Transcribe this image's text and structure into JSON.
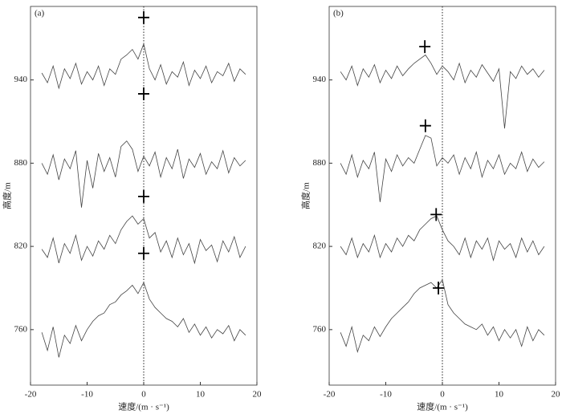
{
  "chart_data": [
    {
      "type": "line",
      "panel_label": "(a)",
      "xlabel": "速度/(m · s⁻¹)",
      "ylabel": "高度/m",
      "xlim": [
        -20,
        20
      ],
      "ylim": [
        720,
        993
      ],
      "xticks": [
        -20,
        -10,
        0,
        10,
        20
      ],
      "yticks": [
        760,
        820,
        880,
        940
      ],
      "reference_x": 0,
      "color": "#444444",
      "x": [
        -18,
        -17,
        -16,
        -15,
        -14,
        -13,
        -12,
        -11,
        -10,
        -9,
        -8,
        -7,
        -6,
        -5,
        -4,
        -3,
        -2,
        -1,
        0,
        1,
        2,
        3,
        4,
        5,
        6,
        7,
        8,
        9,
        10,
        11,
        12,
        13,
        14,
        15,
        16,
        17,
        18
      ],
      "series": [
        {
          "values": [
            945,
            938,
            950,
            934,
            948,
            941,
            952,
            937,
            946,
            940,
            950,
            936,
            948,
            944,
            955,
            958,
            962,
            955,
            966,
            948,
            940,
            951,
            937,
            946,
            942,
            953,
            936,
            947,
            941,
            950,
            938,
            946,
            943,
            952,
            939,
            948,
            944
          ]
        },
        {
          "values": [
            880,
            872,
            886,
            868,
            883,
            876,
            889,
            848,
            882,
            862,
            887,
            874,
            884,
            870,
            892,
            896,
            890,
            874,
            885,
            878,
            888,
            870,
            884,
            876,
            890,
            869,
            883,
            877,
            887,
            872,
            881,
            876,
            889,
            873,
            884,
            878,
            882
          ]
        },
        {
          "values": [
            818,
            812,
            826,
            808,
            822,
            815,
            828,
            810,
            820,
            813,
            824,
            818,
            828,
            822,
            832,
            838,
            842,
            836,
            840,
            826,
            830,
            816,
            824,
            812,
            826,
            814,
            822,
            808,
            825,
            817,
            821,
            809,
            824,
            816,
            827,
            812,
            820
          ]
        },
        {
          "values": [
            758,
            745,
            762,
            740,
            756,
            750,
            763,
            752,
            760,
            766,
            770,
            772,
            778,
            780,
            785,
            788,
            792,
            786,
            794,
            782,
            776,
            772,
            768,
            766,
            762,
            768,
            758,
            764,
            756,
            762,
            754,
            760,
            757,
            763,
            752,
            760,
            756
          ]
        }
      ],
      "markers": {
        "x": [
          0,
          0,
          0,
          0
        ],
        "y": [
          985,
          930,
          856,
          815
        ]
      }
    },
    {
      "type": "line",
      "panel_label": "(b)",
      "xlabel": "速度/(m · s⁻¹)",
      "ylabel": "高度/m",
      "xlim": [
        -20,
        20
      ],
      "ylim": [
        720,
        993
      ],
      "xticks": [
        -20,
        -10,
        0,
        10,
        20
      ],
      "yticks": [
        760,
        820,
        880,
        940
      ],
      "reference_x": 0,
      "color": "#444444",
      "x": [
        -18,
        -17,
        -16,
        -15,
        -14,
        -13,
        -12,
        -11,
        -10,
        -9,
        -8,
        -7,
        -6,
        -5,
        -4,
        -3,
        -2,
        -1,
        0,
        1,
        2,
        3,
        4,
        5,
        6,
        7,
        8,
        9,
        10,
        11,
        12,
        13,
        14,
        15,
        16,
        17,
        18
      ],
      "series": [
        {
          "values": [
            946,
            940,
            950,
            936,
            948,
            942,
            951,
            938,
            947,
            941,
            950,
            943,
            948,
            952,
            955,
            958,
            952,
            944,
            950,
            946,
            940,
            952,
            938,
            947,
            942,
            951,
            945,
            939,
            948,
            905,
            946,
            941,
            950,
            944,
            948,
            942,
            947
          ]
        },
        {
          "values": [
            880,
            872,
            886,
            870,
            882,
            876,
            888,
            852,
            883,
            874,
            886,
            878,
            884,
            880,
            890,
            900,
            898,
            878,
            884,
            880,
            886,
            872,
            884,
            876,
            888,
            870,
            882,
            876,
            886,
            872,
            880,
            876,
            888,
            874,
            883,
            877,
            881
          ]
        },
        {
          "values": [
            820,
            814,
            826,
            812,
            822,
            816,
            828,
            812,
            822,
            816,
            826,
            820,
            828,
            824,
            832,
            836,
            840,
            842,
            832,
            824,
            820,
            814,
            826,
            812,
            824,
            818,
            826,
            810,
            824,
            818,
            822,
            812,
            826,
            816,
            824,
            814,
            820
          ]
        },
        {
          "values": [
            758,
            748,
            762,
            744,
            756,
            752,
            762,
            755,
            762,
            768,
            772,
            776,
            780,
            786,
            790,
            792,
            794,
            790,
            796,
            778,
            772,
            768,
            764,
            762,
            760,
            764,
            756,
            762,
            752,
            760,
            754,
            760,
            748,
            762,
            752,
            760,
            756
          ]
        }
      ],
      "markers": {
        "x": [
          -3.1,
          -3,
          -1.1,
          -0.7
        ],
        "y": [
          964,
          907,
          843,
          790
        ]
      }
    }
  ]
}
